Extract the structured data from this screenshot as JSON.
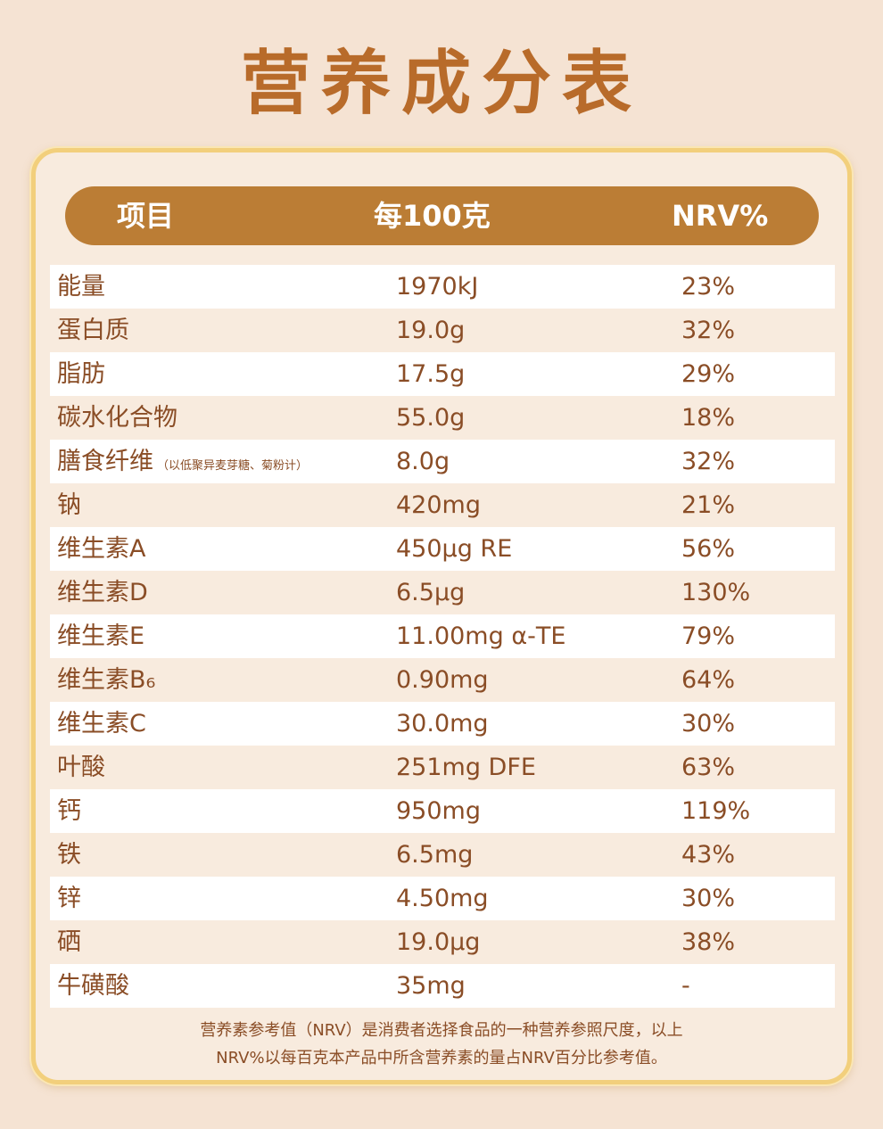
{
  "title": "营养成分表",
  "header": {
    "item": "项目",
    "per100": "每100克",
    "nrv": "NRV%"
  },
  "rows": [
    {
      "name": "能量",
      "note": "",
      "per100": "1970kJ",
      "nrv": "23%"
    },
    {
      "name": "蛋白质",
      "note": "",
      "per100": "19.0g",
      "nrv": "32%"
    },
    {
      "name": "脂肪",
      "note": "",
      "per100": "17.5g",
      "nrv": "29%"
    },
    {
      "name": "碳水化合物",
      "note": "",
      "per100": "55.0g",
      "nrv": "18%"
    },
    {
      "name": "膳食纤维",
      "note": "（以低聚异麦芽糖、菊粉计）",
      "per100": "8.0g",
      "nrv": "32%"
    },
    {
      "name": "钠",
      "note": "",
      "per100": "420mg",
      "nrv": "21%"
    },
    {
      "name": "维生素A",
      "note": "",
      "per100": "450μg RE",
      "nrv": "56%"
    },
    {
      "name": "维生素D",
      "note": "",
      "per100": "6.5μg",
      "nrv": "130%"
    },
    {
      "name": "维生素E",
      "note": "",
      "per100": "11.00mg α-TE",
      "nrv": "79%"
    },
    {
      "name": "维生素B₆",
      "note": "",
      "per100": "0.90mg",
      "nrv": "64%"
    },
    {
      "name": "维生素C",
      "note": "",
      "per100": "30.0mg",
      "nrv": "30%"
    },
    {
      "name": "叶酸",
      "note": "",
      "per100": "251mg DFE",
      "nrv": "63%"
    },
    {
      "name": "钙",
      "note": "",
      "per100": "950mg",
      "nrv": "119%"
    },
    {
      "name": "铁",
      "note": "",
      "per100": "6.5mg",
      "nrv": "43%"
    },
    {
      "name": "锌",
      "note": "",
      "per100": "4.50mg",
      "nrv": "30%"
    },
    {
      "name": "硒",
      "note": "",
      "per100": "19.0μg",
      "nrv": "38%"
    },
    {
      "name": "牛磺酸",
      "note": "",
      "per100": "35mg",
      "nrv": "-"
    }
  ],
  "footnote": {
    "line1": "营养素参考值（NRV）是消费者选择食品的一种营养参照尺度，以上",
    "line2": "NRV%以每百克本产品中所含营养素的量占NRV百分比参考值。"
  },
  "colors": {
    "accent": "#bb7d35",
    "title": "#b86b2a",
    "text": "#8a4d26",
    "background": "#f5e3d3",
    "border": "#f2cf7c"
  }
}
